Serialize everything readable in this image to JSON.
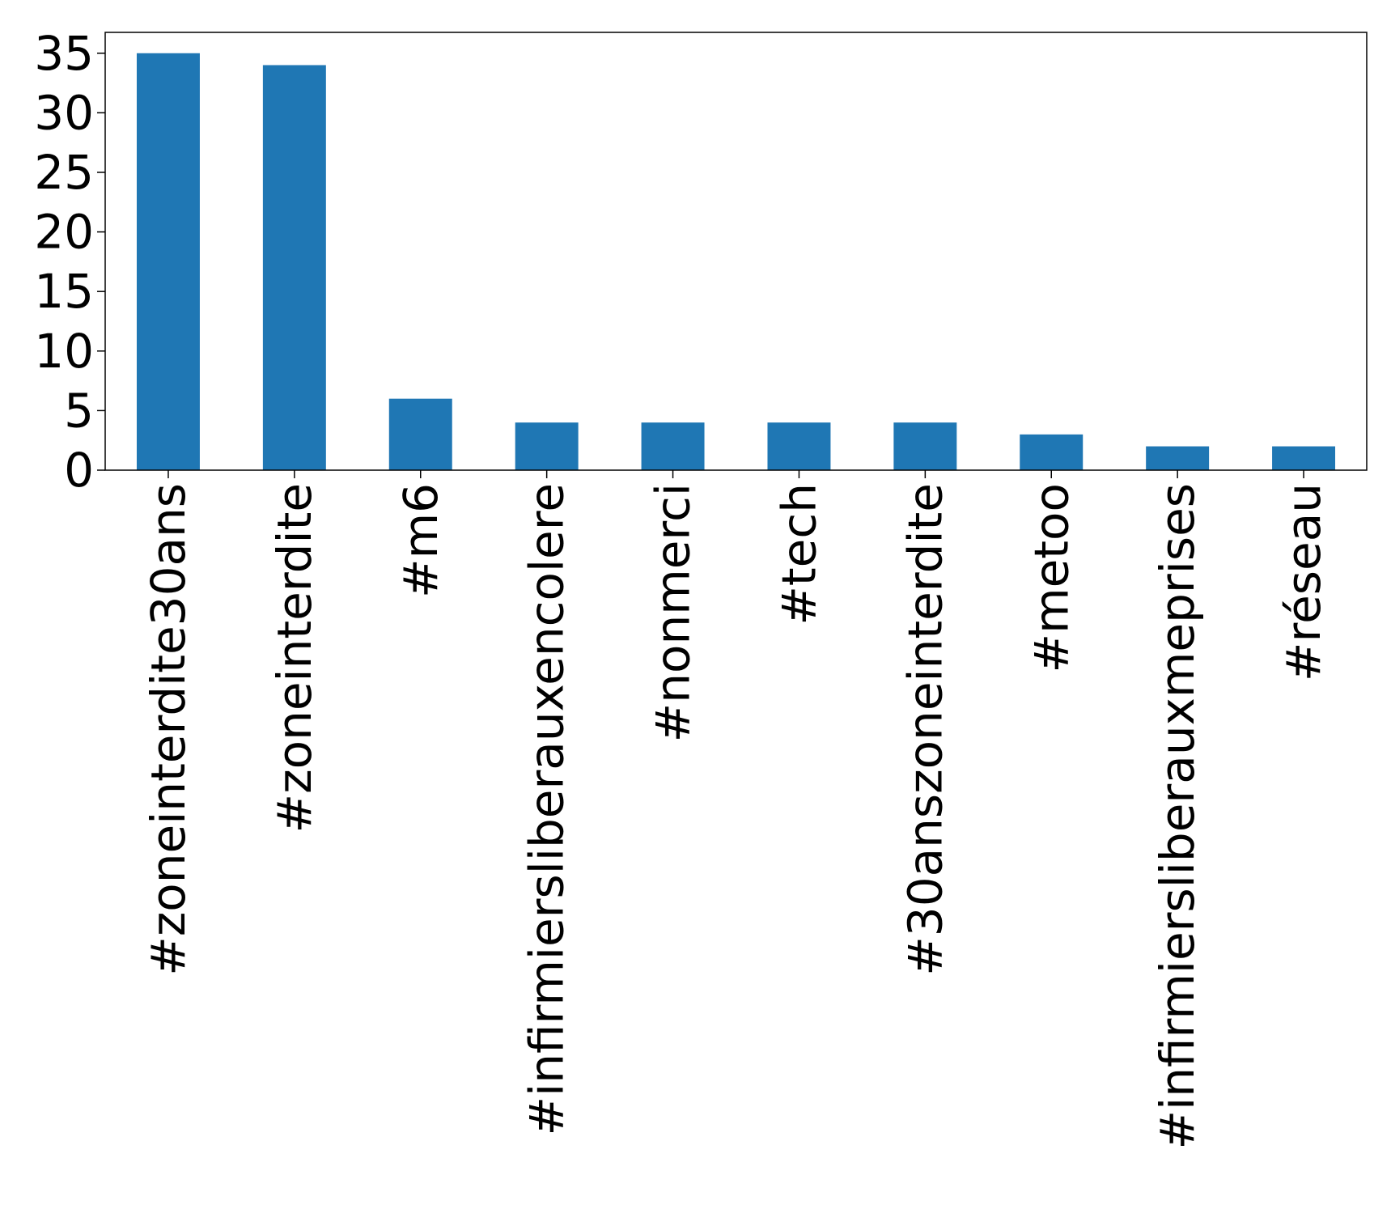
{
  "chart_data": {
    "type": "bar",
    "title": "",
    "xlabel": "",
    "ylabel": "",
    "categories": [
      "#zoneinterdite30ans",
      "#zoneinterdite",
      "#m6",
      "#infirmiersliberauxencolere",
      "#nonmerci",
      "#tech",
      "#30anszoneinterdite",
      "#metoo",
      "#infirmiersliberauxmeprises",
      "#réseau"
    ],
    "values": [
      35,
      34,
      6,
      4,
      4,
      4,
      4,
      3,
      2,
      2
    ],
    "ylim": [
      0,
      36.75
    ],
    "yticks": [
      0,
      5,
      10,
      15,
      20,
      25,
      30,
      35
    ],
    "grid": false,
    "legend": "none",
    "colors": {
      "bar": "#1f77b4",
      "axis": "#000000",
      "background": "#ffffff"
    }
  }
}
